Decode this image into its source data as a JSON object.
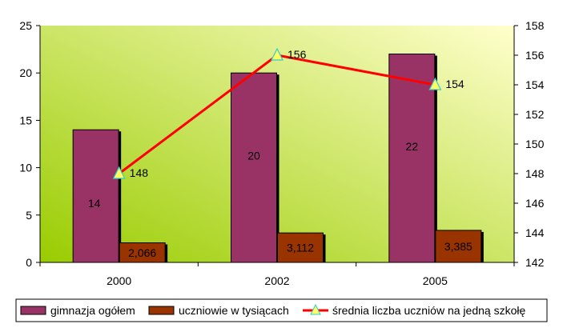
{
  "chart_data": {
    "type": "bar",
    "categories": [
      "2000",
      "2002",
      "2005"
    ],
    "series": [
      {
        "name": "gimnazja ogółem",
        "kind": "bar",
        "axis": "left",
        "values": [
          14,
          20,
          22
        ],
        "labels": [
          "14",
          "20",
          "22"
        ],
        "color": "#993366"
      },
      {
        "name": "uczniowie w tysiącach",
        "kind": "bar",
        "axis": "left",
        "values": [
          2.066,
          3.112,
          3.385
        ],
        "labels": [
          "2,066",
          "3,112",
          "3,385"
        ],
        "color": "#993300"
      },
      {
        "name": "średnia liczba uczniów na jedną szkołę",
        "kind": "line",
        "axis": "right",
        "values": [
          148,
          156,
          154
        ],
        "labels": [
          "148",
          "156",
          "154"
        ],
        "color": "#ff0000",
        "marker_color": "#ffff66"
      }
    ],
    "y_left": {
      "ylim": [
        0,
        25
      ],
      "ticks": [
        "0",
        "5",
        "10",
        "15",
        "20",
        "25"
      ]
    },
    "y_right": {
      "ylim": [
        142,
        158
      ],
      "ticks": [
        "142",
        "144",
        "146",
        "148",
        "150",
        "152",
        "154",
        "156",
        "158"
      ]
    },
    "grid": false,
    "legend_position": "bottom",
    "background_gradient": [
      "#99cc00",
      "#ffffcc"
    ]
  }
}
